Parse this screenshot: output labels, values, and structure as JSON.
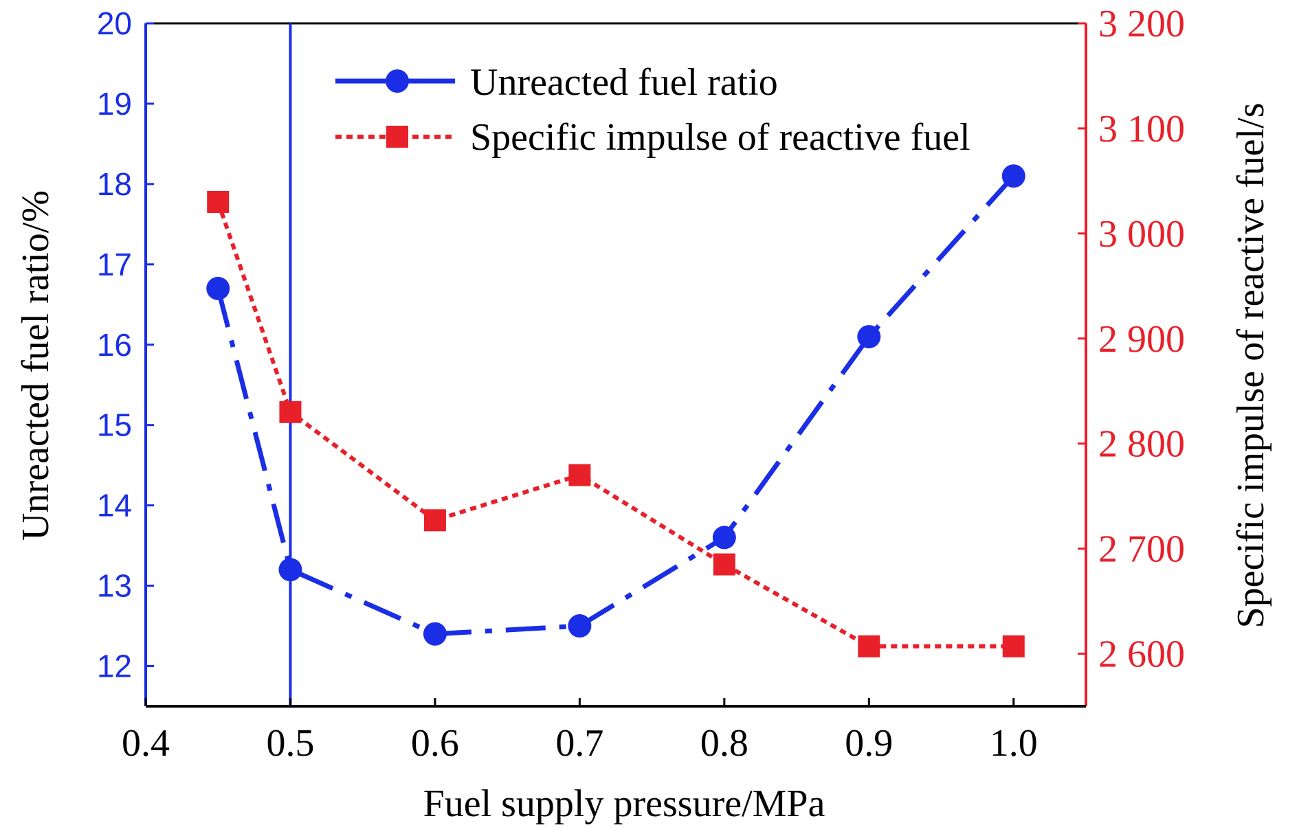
{
  "chart_data": {
    "type": "line",
    "xlabel": "Fuel supply pressure/MPa",
    "ylabel_left": "Unreacted fuel ratio/%",
    "ylabel_right": "Specific impulse of reactive fuel/s",
    "xlim": [
      0.4,
      1.05
    ],
    "ylim_left": [
      11.5,
      20
    ],
    "ylim_right": [
      2550,
      3200
    ],
    "x_ticks": [
      "0.4",
      "0.5",
      "0.6",
      "0.7",
      "0.8",
      "0.9",
      "1.0"
    ],
    "y_left_ticks": [
      "12",
      "13",
      "14",
      "15",
      "16",
      "17",
      "18",
      "19",
      "20"
    ],
    "y_right_ticks": [
      "2 600",
      "2 700",
      "2 800",
      "2 900",
      "3 000",
      "3 100",
      "3 200"
    ],
    "series": [
      {
        "name": "Unreacted fuel ratio",
        "axis": "left",
        "color": "#1a2ee6",
        "style": "dash-dot",
        "marker": "circle",
        "x": [
          0.45,
          0.5,
          0.6,
          0.7,
          0.8,
          0.9,
          1.0
        ],
        "y": [
          16.7,
          13.2,
          12.4,
          12.5,
          13.6,
          16.1,
          18.1
        ]
      },
      {
        "name": "Specific impulse of reactive fuel",
        "axis": "right",
        "color": "#e8202a",
        "style": "dotted",
        "marker": "square",
        "x": [
          0.45,
          0.5,
          0.6,
          0.7,
          0.8,
          0.9,
          1.0
        ],
        "y": [
          3030,
          2830,
          2727,
          2770,
          2685,
          2607,
          2607
        ]
      }
    ],
    "reference_line": {
      "x": 0.5,
      "color": "#1a2ee6"
    },
    "grid": false,
    "legend": "top"
  }
}
